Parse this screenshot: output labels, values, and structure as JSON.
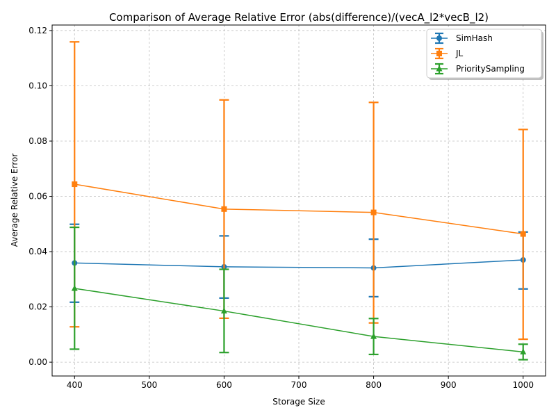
{
  "chart_data": {
    "type": "line",
    "title": "Comparison of Average Relative Error (abs(difference)/(vecA_l2*vecB_l2)",
    "xlabel": "Storage Size",
    "ylabel": "Average Relative Error",
    "x": [
      400,
      600,
      800,
      1000
    ],
    "xlim": [
      370,
      1030
    ],
    "ylim": [
      -0.005,
      0.122
    ],
    "x_ticks": [
      400,
      500,
      600,
      700,
      800,
      900,
      1000
    ],
    "x_tick_labels": [
      "400",
      "500",
      "600",
      "700",
      "800",
      "900",
      "1000"
    ],
    "y_ticks": [
      0.0,
      0.02,
      0.04,
      0.06,
      0.08,
      0.1,
      0.12
    ],
    "y_tick_labels": [
      "0.00",
      "0.02",
      "0.04",
      "0.06",
      "0.08",
      "0.10",
      "0.12"
    ],
    "grid": true,
    "legend_position": "top-right",
    "series": [
      {
        "name": "SimHash",
        "color": "#1f77b4",
        "marker": "circle",
        "values": [
          0.0359,
          0.0345,
          0.0341,
          0.037
        ],
        "err_low": [
          0.0217,
          0.0232,
          0.0237,
          0.0265
        ],
        "err_high": [
          0.0499,
          0.0457,
          0.0445,
          0.0471
        ]
      },
      {
        "name": "JL",
        "color": "#ff7f0e",
        "marker": "square",
        "values": [
          0.0644,
          0.0554,
          0.0542,
          0.0464
        ],
        "err_low": [
          0.0128,
          0.0159,
          0.0142,
          0.0083
        ],
        "err_high": [
          0.1159,
          0.0949,
          0.094,
          0.0842
        ]
      },
      {
        "name": "PrioritySampling",
        "color": "#2ca02c",
        "marker": "triangle",
        "values": [
          0.0267,
          0.0185,
          0.0093,
          0.0037
        ],
        "err_low": [
          0.0047,
          0.0035,
          0.0028,
          0.0009
        ],
        "err_high": [
          0.0488,
          0.0336,
          0.0158,
          0.0065
        ]
      }
    ]
  }
}
